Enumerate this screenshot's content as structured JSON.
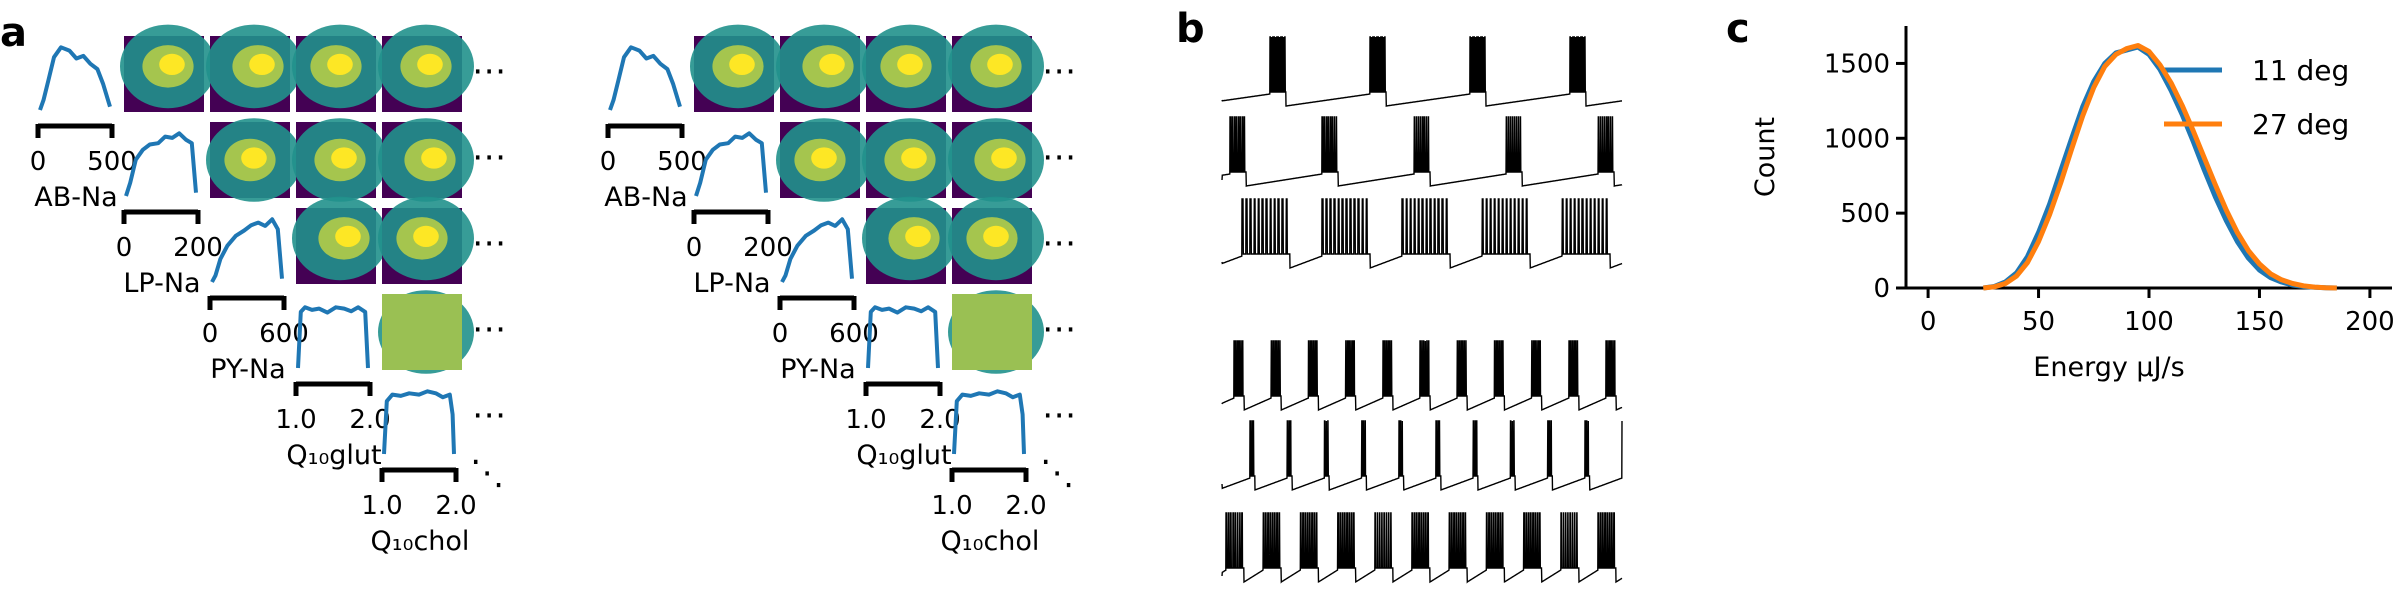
{
  "panels": {
    "a": "a",
    "b": "b",
    "c": "c"
  },
  "panel_a": {
    "corner_plots": [
      {
        "axis_label": "AB-Na",
        "tick_labels": [
          "0",
          "500"
        ]
      },
      {
        "axis_label": "LP-Na",
        "tick_labels": [
          "0",
          "200"
        ]
      },
      {
        "axis_label": "PY-Na",
        "tick_labels": [
          "0",
          "600"
        ]
      },
      {
        "axis_label": "Q₁₀glut",
        "tick_labels": [
          "1.0",
          "2.0"
        ]
      },
      {
        "axis_label": "Q₁₀chol",
        "tick_labels": [
          "1.0",
          "2.0"
        ]
      }
    ],
    "ellipsis": "⋯",
    "diag_ellipsis": "⋱",
    "colors": {
      "marginal": "#1f77b4",
      "heat_low": "#440154",
      "heat_mid": "#21918c",
      "heat_high": "#fde725"
    }
  },
  "panel_b": {
    "trace_color": "#000000",
    "groups": [
      {
        "traces": [
          {
            "period": 0.25,
            "burst_start": 0.12,
            "burst_width": 0.04,
            "spikes": 12
          },
          {
            "period": 0.23,
            "burst_start": 0.02,
            "burst_width": 0.04,
            "spikes": 8
          },
          {
            "period": 0.2,
            "burst_start": 0.05,
            "burst_width": 0.12,
            "spikes": 12
          }
        ]
      },
      {
        "traces": [
          {
            "period": 0.093,
            "burst_start": 0.03,
            "burst_width": 0.025,
            "spikes": 6
          },
          {
            "period": 0.093,
            "burst_start": 0.07,
            "burst_width": 0.012,
            "spikes": 3
          },
          {
            "period": 0.093,
            "burst_start": 0.01,
            "burst_width": 0.045,
            "spikes": 8
          }
        ]
      }
    ]
  },
  "chart_data": {
    "type": "line",
    "xlabel": "Energy  µJ/s",
    "ylabel": "Count",
    "xlim": [
      -10,
      210
    ],
    "ylim": [
      0,
      1750
    ],
    "xticks": [
      0,
      50,
      100,
      150,
      200
    ],
    "yticks": [
      0,
      500,
      1000,
      1500
    ],
    "legend_position": "top-right",
    "series": [
      {
        "name": "11 deg",
        "color": "#1f77b4",
        "x": [
          25,
          30,
          35,
          40,
          45,
          50,
          55,
          60,
          65,
          70,
          75,
          80,
          85,
          90,
          95,
          100,
          105,
          110,
          115,
          120,
          125,
          130,
          135,
          140,
          145,
          150,
          155,
          160,
          165,
          170,
          175,
          180,
          185
        ],
        "y": [
          0,
          10,
          40,
          100,
          210,
          370,
          560,
          780,
          1000,
          1210,
          1380,
          1500,
          1570,
          1590,
          1610,
          1560,
          1460,
          1320,
          1160,
          980,
          790,
          610,
          450,
          310,
          200,
          120,
          70,
          40,
          20,
          10,
          5,
          2,
          0
        ]
      },
      {
        "name": "27 deg",
        "color": "#ff7f0e",
        "x": [
          25,
          30,
          35,
          40,
          45,
          50,
          55,
          60,
          65,
          70,
          75,
          80,
          85,
          90,
          95,
          100,
          105,
          110,
          115,
          120,
          125,
          130,
          135,
          140,
          145,
          150,
          155,
          160,
          165,
          170,
          175,
          180,
          185
        ],
        "y": [
          0,
          8,
          30,
          80,
          170,
          310,
          490,
          700,
          930,
          1150,
          1340,
          1480,
          1560,
          1600,
          1620,
          1580,
          1490,
          1370,
          1220,
          1050,
          870,
          690,
          520,
          370,
          250,
          160,
          95,
          55,
          30,
          15,
          6,
          2,
          0
        ]
      }
    ]
  }
}
